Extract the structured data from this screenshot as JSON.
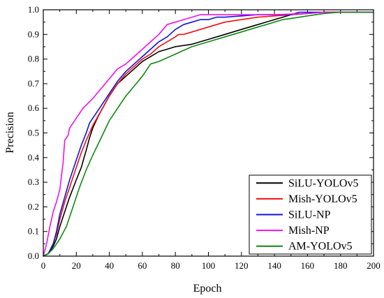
{
  "chart_data": {
    "type": "line",
    "xlabel": "Epoch",
    "ylabel": "Precision",
    "xlim": [
      0,
      200
    ],
    "ylim": [
      0,
      1.0
    ],
    "x_ticks": [
      "0",
      "20",
      "40",
      "60",
      "80",
      "100",
      "120",
      "140",
      "160",
      "180",
      "200"
    ],
    "y_ticks": [
      "0.0",
      "0.1",
      "0.2",
      "0.3",
      "0.4",
      "0.5",
      "0.6",
      "0.7",
      "0.8",
      "0.9",
      "1.0"
    ],
    "grid": false,
    "legend_position": "bottom-right",
    "series": [
      {
        "name": "SiLU-YOLOv5",
        "color": "#000000",
        "points": [
          [
            0,
            0
          ],
          [
            3,
            0.01
          ],
          [
            6,
            0.04
          ],
          [
            8,
            0.07
          ],
          [
            10,
            0.12
          ],
          [
            13,
            0.18
          ],
          [
            16,
            0.24
          ],
          [
            20,
            0.31
          ],
          [
            23,
            0.36
          ],
          [
            26,
            0.43
          ],
          [
            28,
            0.48
          ],
          [
            30,
            0.52
          ],
          [
            32,
            0.55
          ],
          [
            35,
            0.59
          ],
          [
            40,
            0.65
          ],
          [
            45,
            0.7
          ],
          [
            50,
            0.73
          ],
          [
            55,
            0.76
          ],
          [
            60,
            0.79
          ],
          [
            65,
            0.81
          ],
          [
            70,
            0.83
          ],
          [
            75,
            0.84
          ],
          [
            80,
            0.85
          ],
          [
            90,
            0.86
          ],
          [
            100,
            0.88
          ],
          [
            110,
            0.9
          ],
          [
            120,
            0.92
          ],
          [
            130,
            0.94
          ],
          [
            140,
            0.96
          ],
          [
            150,
            0.98
          ],
          [
            160,
            0.985
          ],
          [
            170,
            0.99
          ],
          [
            180,
            0.99
          ],
          [
            200,
            0.99
          ]
        ]
      },
      {
        "name": "Mish-YOLOv5",
        "color": "#ee1111",
        "points": [
          [
            0,
            0
          ],
          [
            3,
            0.01
          ],
          [
            6,
            0.05
          ],
          [
            8,
            0.09
          ],
          [
            10,
            0.15
          ],
          [
            13,
            0.22
          ],
          [
            16,
            0.28
          ],
          [
            20,
            0.36
          ],
          [
            23,
            0.42
          ],
          [
            26,
            0.47
          ],
          [
            30,
            0.53
          ],
          [
            35,
            0.59
          ],
          [
            40,
            0.65
          ],
          [
            45,
            0.7
          ],
          [
            50,
            0.74
          ],
          [
            55,
            0.77
          ],
          [
            60,
            0.8
          ],
          [
            65,
            0.82
          ],
          [
            70,
            0.85
          ],
          [
            75,
            0.87
          ],
          [
            80,
            0.89
          ],
          [
            82,
            0.9
          ],
          [
            85,
            0.9
          ],
          [
            90,
            0.91
          ],
          [
            100,
            0.93
          ],
          [
            110,
            0.95
          ],
          [
            120,
            0.96
          ],
          [
            130,
            0.97
          ],
          [
            140,
            0.975
          ],
          [
            150,
            0.98
          ],
          [
            160,
            0.985
          ],
          [
            170,
            0.99
          ],
          [
            180,
            0.99
          ],
          [
            200,
            0.99
          ]
        ]
      },
      {
        "name": "SiLU-NP",
        "color": "#1111dd",
        "points": [
          [
            0,
            0
          ],
          [
            3,
            0.01
          ],
          [
            6,
            0.05
          ],
          [
            8,
            0.1
          ],
          [
            10,
            0.17
          ],
          [
            13,
            0.24
          ],
          [
            16,
            0.31
          ],
          [
            20,
            0.39
          ],
          [
            23,
            0.45
          ],
          [
            26,
            0.5
          ],
          [
            28,
            0.54
          ],
          [
            30,
            0.56
          ],
          [
            35,
            0.61
          ],
          [
            40,
            0.66
          ],
          [
            45,
            0.71
          ],
          [
            50,
            0.75
          ],
          [
            55,
            0.78
          ],
          [
            60,
            0.81
          ],
          [
            65,
            0.84
          ],
          [
            70,
            0.87
          ],
          [
            75,
            0.89
          ],
          [
            80,
            0.92
          ],
          [
            85,
            0.94
          ],
          [
            90,
            0.95
          ],
          [
            95,
            0.96
          ],
          [
            100,
            0.96
          ],
          [
            105,
            0.97
          ],
          [
            110,
            0.97
          ],
          [
            120,
            0.975
          ],
          [
            130,
            0.98
          ],
          [
            140,
            0.98
          ],
          [
            150,
            0.98
          ],
          [
            155,
            0.99
          ],
          [
            160,
            0.99
          ],
          [
            200,
            0.99
          ]
        ]
      },
      {
        "name": "Mish-NP",
        "color": "#ee11ee",
        "points": [
          [
            0,
            0
          ],
          [
            2,
            0.05
          ],
          [
            4,
            0.12
          ],
          [
            6,
            0.18
          ],
          [
            8,
            0.22
          ],
          [
            10,
            0.27
          ],
          [
            12,
            0.38
          ],
          [
            13,
            0.47
          ],
          [
            15,
            0.49
          ],
          [
            16,
            0.52
          ],
          [
            20,
            0.56
          ],
          [
            24,
            0.6
          ],
          [
            30,
            0.64
          ],
          [
            35,
            0.68
          ],
          [
            40,
            0.72
          ],
          [
            45,
            0.76
          ],
          [
            50,
            0.78
          ],
          [
            55,
            0.81
          ],
          [
            60,
            0.84
          ],
          [
            65,
            0.87
          ],
          [
            70,
            0.9
          ],
          [
            75,
            0.94
          ],
          [
            80,
            0.95
          ],
          [
            85,
            0.96
          ],
          [
            90,
            0.97
          ],
          [
            95,
            0.98
          ],
          [
            100,
            0.98
          ],
          [
            110,
            0.98
          ],
          [
            120,
            0.98
          ],
          [
            140,
            0.98
          ],
          [
            160,
            0.985
          ],
          [
            170,
            0.99
          ],
          [
            200,
            0.99
          ]
        ]
      },
      {
        "name": "AM-YOLOv5",
        "color": "#118811",
        "points": [
          [
            0,
            0
          ],
          [
            3,
            0.01
          ],
          [
            6,
            0.03
          ],
          [
            10,
            0.07
          ],
          [
            14,
            0.12
          ],
          [
            18,
            0.2
          ],
          [
            22,
            0.28
          ],
          [
            26,
            0.35
          ],
          [
            30,
            0.41
          ],
          [
            35,
            0.48
          ],
          [
            40,
            0.55
          ],
          [
            45,
            0.6
          ],
          [
            50,
            0.65
          ],
          [
            55,
            0.69
          ],
          [
            60,
            0.73
          ],
          [
            65,
            0.78
          ],
          [
            70,
            0.79
          ],
          [
            80,
            0.82
          ],
          [
            90,
            0.85
          ],
          [
            100,
            0.87
          ],
          [
            110,
            0.89
          ],
          [
            120,
            0.91
          ],
          [
            130,
            0.93
          ],
          [
            140,
            0.95
          ],
          [
            145,
            0.96
          ],
          [
            150,
            0.965
          ],
          [
            160,
            0.975
          ],
          [
            170,
            0.985
          ],
          [
            180,
            0.99
          ],
          [
            200,
            0.99
          ]
        ]
      }
    ]
  }
}
